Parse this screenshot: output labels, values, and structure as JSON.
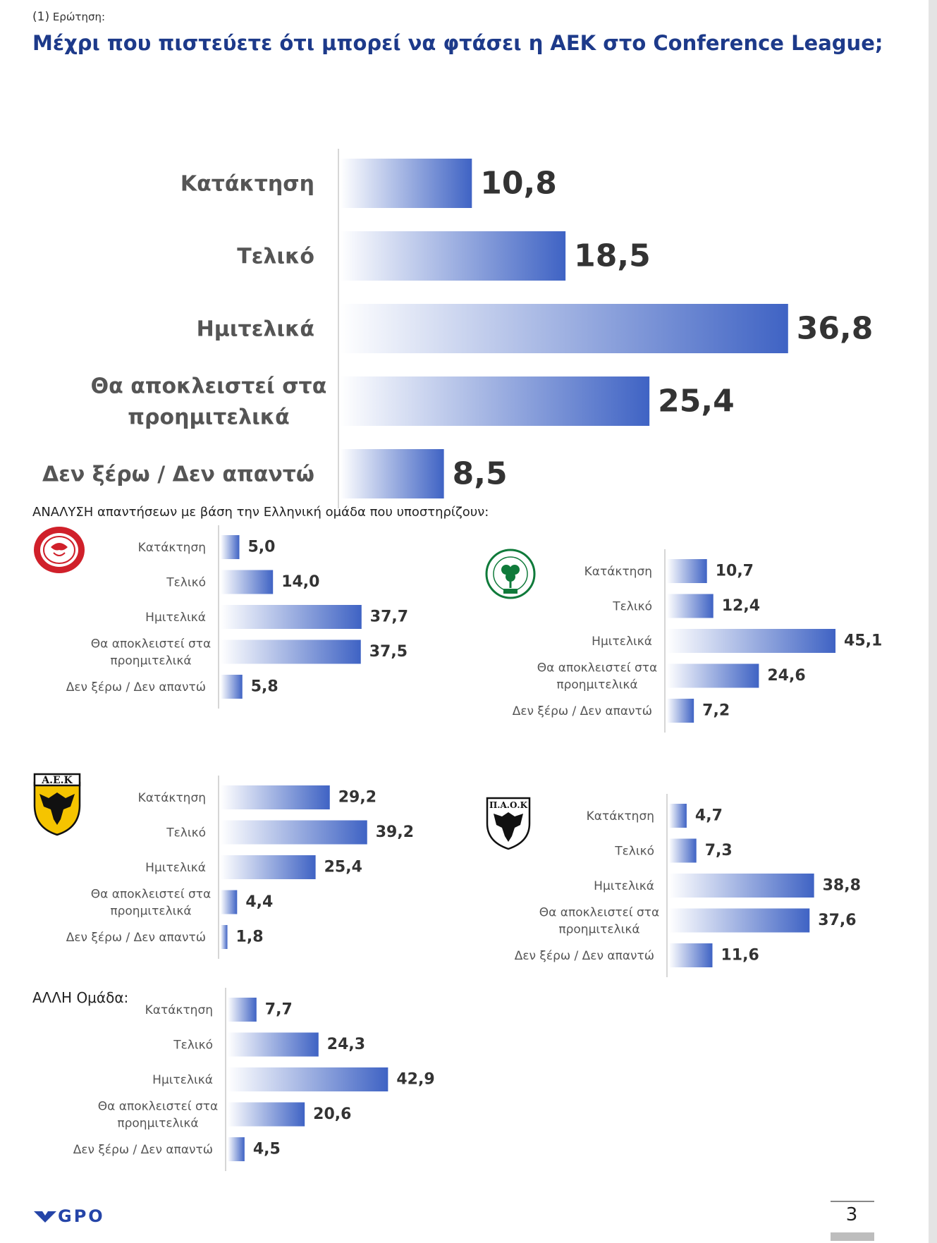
{
  "question": {
    "number": "(1)",
    "label": "Ερώτηση:"
  },
  "title": "Μέχρι που πιστεύετε ότι μπορεί να φτάσει η ΑΕΚ στο Conference League;",
  "analysis_title": "ΑΝΑΛΥΣΗ απαντήσεων με βάση την Ελληνική ομάδα που υποστηρίζουν:",
  "other_team_label": "ΑΛΛΗ Ομάδα:",
  "logos": {
    "olympiacos": "olympiacos-logo",
    "panathinaikos": "panathinaikos-logo",
    "aek": "aek-logo",
    "paok": "paok-logo",
    "gpo": "GPO"
  },
  "page_number": "3",
  "colors": {
    "bar_start": "#ffffff",
    "bar_end": "#3f63c4",
    "title": "#1d3a8a"
  },
  "chart_data": [
    {
      "id": "total",
      "type": "bar",
      "orientation": "horizontal",
      "categories": [
        "Κατάκτηση",
        "Τελικό",
        "Ημιτελικά",
        "Θα αποκλειστεί στα|προημιτελικά",
        "Δεν ξέρω / Δεν απαντώ"
      ],
      "values": [
        10.8,
        18.5,
        36.8,
        25.4,
        8.5
      ],
      "labels": [
        "10,8",
        "18,5",
        "36,8",
        "25,4",
        "8,5"
      ]
    },
    {
      "id": "olympiacos",
      "team": "Ολυμπιακός",
      "type": "bar",
      "orientation": "horizontal",
      "categories": [
        "Κατάκτηση",
        "Τελικό",
        "Ημιτελικά",
        "Θα αποκλειστεί στα|προημιτελικά",
        "Δεν ξέρω / Δεν απαντώ"
      ],
      "values": [
        5.0,
        14.0,
        37.7,
        37.5,
        5.8
      ],
      "labels": [
        "5,0",
        "14,0",
        "37,7",
        "37,5",
        "5,8"
      ]
    },
    {
      "id": "panathinaikos",
      "team": "Παναθηναϊκός",
      "type": "bar",
      "orientation": "horizontal",
      "categories": [
        "Κατάκτηση",
        "Τελικό",
        "Ημιτελικά",
        "Θα αποκλειστεί στα|προημιτελικά",
        "Δεν ξέρω / Δεν απαντώ"
      ],
      "values": [
        10.7,
        12.4,
        45.1,
        24.6,
        7.2
      ],
      "labels": [
        "10,7",
        "12,4",
        "45,1",
        "24,6",
        "7,2"
      ]
    },
    {
      "id": "aek",
      "team": "ΑΕΚ",
      "type": "bar",
      "orientation": "horizontal",
      "categories": [
        "Κατάκτηση",
        "Τελικό",
        "Ημιτελικά",
        "Θα αποκλειστεί στα|προημιτελικά",
        "Δεν ξέρω / Δεν απαντώ"
      ],
      "values": [
        29.2,
        39.2,
        25.4,
        4.4,
        1.8
      ],
      "labels": [
        "29,2",
        "39,2",
        "25,4",
        "4,4",
        "1,8"
      ]
    },
    {
      "id": "paok",
      "team": "ΠΑΟΚ",
      "type": "bar",
      "orientation": "horizontal",
      "categories": [
        "Κατάκτηση",
        "Τελικό",
        "Ημιτελικά",
        "Θα αποκλειστεί στα|προημιτελικά",
        "Δεν ξέρω / Δεν απαντώ"
      ],
      "values": [
        4.7,
        7.3,
        38.8,
        37.6,
        11.6
      ],
      "labels": [
        "4,7",
        "7,3",
        "38,8",
        "37,6",
        "11,6"
      ]
    },
    {
      "id": "other",
      "team": "ΑΛΛΗ Ομάδα",
      "type": "bar",
      "orientation": "horizontal",
      "categories": [
        "Κατάκτηση",
        "Τελικό",
        "Ημιτελικά",
        "Θα αποκλειστεί στα|προημιτελικά",
        "Δεν ξέρω / Δεν απαντώ"
      ],
      "values": [
        7.7,
        24.3,
        42.9,
        20.6,
        4.5
      ],
      "labels": [
        "7,7",
        "24,3",
        "42,9",
        "20,6",
        "4,5"
      ]
    }
  ]
}
